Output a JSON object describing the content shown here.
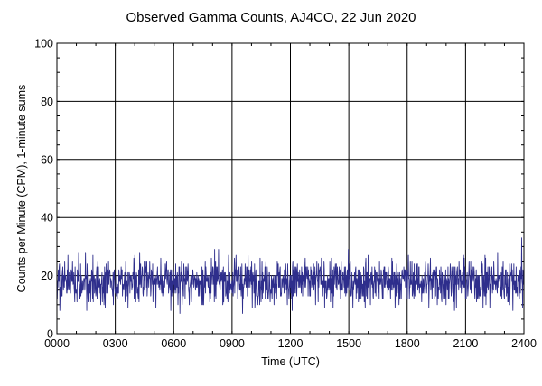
{
  "chart_data": {
    "type": "line",
    "title": "Observed Gamma Counts, AJ4CO, 22 Jun 2020",
    "xlabel": "Time (UTC)",
    "ylabel": "Counts per Minute (CPM), 1-minute sums",
    "x_ticks": [
      "0000",
      "0300",
      "0600",
      "0900",
      "1200",
      "1500",
      "1800",
      "2100",
      "2400"
    ],
    "y_ticks": [
      0,
      20,
      40,
      60,
      80,
      100
    ],
    "xlim": [
      0,
      1440
    ],
    "ylim": [
      0,
      100
    ],
    "x_unit": "minutes since 0000 UTC",
    "grid": true,
    "series": [
      {
        "color": "#2e2e8c",
        "mean": 18,
        "min": 7,
        "max": 33,
        "n_points": 1440
      }
    ]
  }
}
